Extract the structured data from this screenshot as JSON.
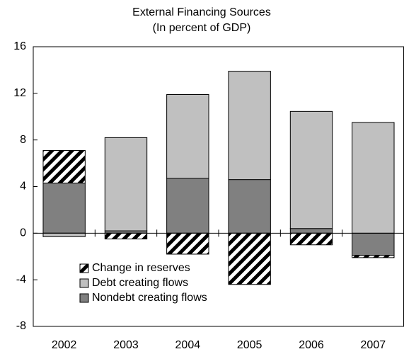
{
  "chart_data": {
    "type": "stacked-bar",
    "title": "External Financing Sources",
    "subtitle": "(In percent of GDP)",
    "categories": [
      "2002",
      "2003",
      "2004",
      "2005",
      "2006",
      "2007"
    ],
    "series": [
      {
        "name": "Change in reserves",
        "color": "#000000",
        "hatch": true,
        "values": [
          2.8,
          -0.5,
          -1.8,
          -4.4,
          -1.0,
          -0.2
        ]
      },
      {
        "name": "Debt creating flows",
        "color": "#c0c0c0",
        "values": [
          -0.3,
          8.0,
          7.2,
          9.3,
          10.05,
          9.5
        ]
      },
      {
        "name": "Nondebt creating flows",
        "color": "#808080",
        "values": [
          4.3,
          0.2,
          4.7,
          4.6,
          0.4,
          -1.9
        ]
      }
    ],
    "ylim": [
      -8,
      16
    ],
    "yticks": [
      -8,
      -4,
      0,
      4,
      8,
      12,
      16
    ]
  }
}
